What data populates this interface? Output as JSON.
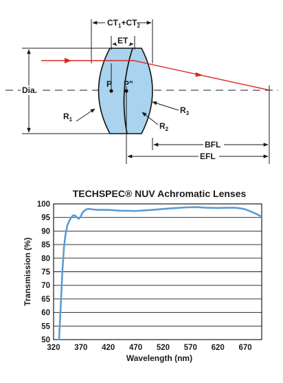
{
  "diagram": {
    "labels": {
      "ct": "CT",
      "ct_sub1": "1",
      "ct_plus": "+CT",
      "ct_sub2": "2",
      "et": "ET",
      "dia": "Dia.",
      "p": "P",
      "p_double_prime": "P\"",
      "r1": "R",
      "r1_sub": "1",
      "r2": "R",
      "r2_sub": "2",
      "r3": "R",
      "r3_sub": "3",
      "bfl": "BFL",
      "efl": "EFL"
    },
    "colors": {
      "lens_fill": "#a9d3ee",
      "lens_outline": "#111111",
      "ray": "#d9261c"
    }
  },
  "chart_data": {
    "type": "line",
    "title": "TECHSPEC® NUV Achromatic Lenses",
    "xlabel": "Wavelength (nm)",
    "ylabel": "Transmission (%)",
    "xlim": [
      320,
      700
    ],
    "ylim": [
      50,
      100
    ],
    "xticks": [
      320,
      370,
      420,
      470,
      520,
      570,
      620,
      670
    ],
    "yticks": [
      50,
      55,
      60,
      65,
      70,
      75,
      80,
      85,
      90,
      95,
      100
    ],
    "grid": "horizontal",
    "line_color": "#5b9bd5",
    "series": [
      {
        "x": [
          330,
          333,
          336,
          339,
          342,
          345,
          348,
          352,
          356,
          360,
          363,
          366,
          369,
          372,
          376,
          380,
          385,
          390,
          400,
          420,
          440,
          470,
          500,
          530,
          560,
          580,
          600,
          620,
          640,
          650,
          660,
          670,
          680,
          690,
          700
        ],
        "y": [
          50,
          62,
          75,
          84,
          89,
          92,
          93.5,
          95,
          95.8,
          95.6,
          95,
          94.5,
          95.2,
          96.5,
          97.5,
          98,
          98.2,
          98,
          97.8,
          97.8,
          97.5,
          97.4,
          97.8,
          98.3,
          98.7,
          98.8,
          98.6,
          98.5,
          98.6,
          98.6,
          98.4,
          98,
          97.2,
          96.3,
          95.3
        ]
      }
    ]
  }
}
